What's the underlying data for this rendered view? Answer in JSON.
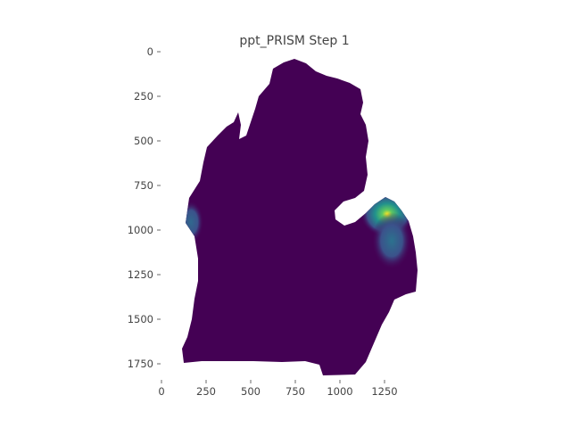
{
  "chart_data": {
    "type": "heatmap",
    "title": "ppt_PRISM Step 1",
    "xlabel": "",
    "ylabel": "",
    "x_ticks": [
      0,
      250,
      500,
      750,
      1000,
      1250
    ],
    "y_ticks": [
      0,
      250,
      500,
      750,
      1000,
      1250,
      1500,
      1750
    ],
    "xlim": [
      0,
      1460
    ],
    "ylim": [
      1850,
      0
    ],
    "grid": false,
    "colormap": "viridis",
    "background_value_color": "#440154",
    "hotspots": [
      {
        "x": 1265,
        "y": 910,
        "intensity": 1.0
      },
      {
        "x": 1290,
        "y": 1060,
        "intensity": 0.45
      },
      {
        "x": 165,
        "y": 955,
        "intensity": 0.5
      }
    ]
  },
  "colors": {
    "low": "#440154",
    "mid": "#3b528b",
    "teal": "#21918c",
    "green": "#5ec962",
    "high": "#fde725",
    "tick": "#444444"
  }
}
